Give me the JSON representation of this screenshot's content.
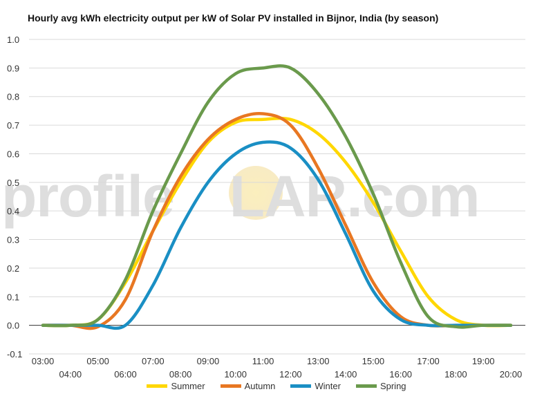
{
  "chart_data": {
    "type": "line",
    "title": "Hourly avg kWh electricity output per kW of Solar PV installed in Bijnor, India (by season)",
    "xlabel": "",
    "ylabel": "",
    "ylim": [
      -0.1,
      1.0
    ],
    "yticks": [
      "-0.1",
      "0.0",
      "0.1",
      "0.2",
      "0.3",
      "0.4",
      "0.5",
      "0.6",
      "0.7",
      "0.8",
      "0.9",
      "1.0"
    ],
    "x": [
      "03:00",
      "04:00",
      "05:00",
      "06:00",
      "07:00",
      "08:00",
      "09:00",
      "10:00",
      "11:00",
      "12:00",
      "13:00",
      "14:00",
      "15:00",
      "16:00",
      "17:00",
      "18:00",
      "19:00",
      "20:00"
    ],
    "grid": true,
    "legend_position": "bottom",
    "series": [
      {
        "name": "Summer",
        "color": "#ffd700",
        "values": [
          0.0,
          0.0,
          0.02,
          0.15,
          0.33,
          0.5,
          0.64,
          0.71,
          0.72,
          0.72,
          0.67,
          0.57,
          0.43,
          0.26,
          0.1,
          0.02,
          0.0,
          0.0
        ]
      },
      {
        "name": "Autumn",
        "color": "#e87722",
        "values": [
          0.0,
          0.0,
          -0.005,
          0.09,
          0.33,
          0.52,
          0.65,
          0.72,
          0.74,
          0.7,
          0.55,
          0.35,
          0.15,
          0.03,
          0.0,
          0.0,
          0.0,
          0.0
        ]
      },
      {
        "name": "Winter",
        "color": "#1a8fc4",
        "values": [
          0.0,
          0.0,
          0.0,
          0.0,
          0.14,
          0.34,
          0.5,
          0.6,
          0.64,
          0.62,
          0.51,
          0.32,
          0.12,
          0.02,
          0.0,
          0.0,
          0.0,
          0.0
        ]
      },
      {
        "name": "Spring",
        "color": "#6a9a4c",
        "values": [
          0.0,
          0.0,
          0.02,
          0.16,
          0.4,
          0.6,
          0.78,
          0.88,
          0.9,
          0.9,
          0.81,
          0.66,
          0.46,
          0.22,
          0.03,
          -0.005,
          0.0,
          0.0
        ]
      }
    ]
  },
  "watermark": {
    "text_left": "profile",
    "text_right": "LAR.com"
  }
}
